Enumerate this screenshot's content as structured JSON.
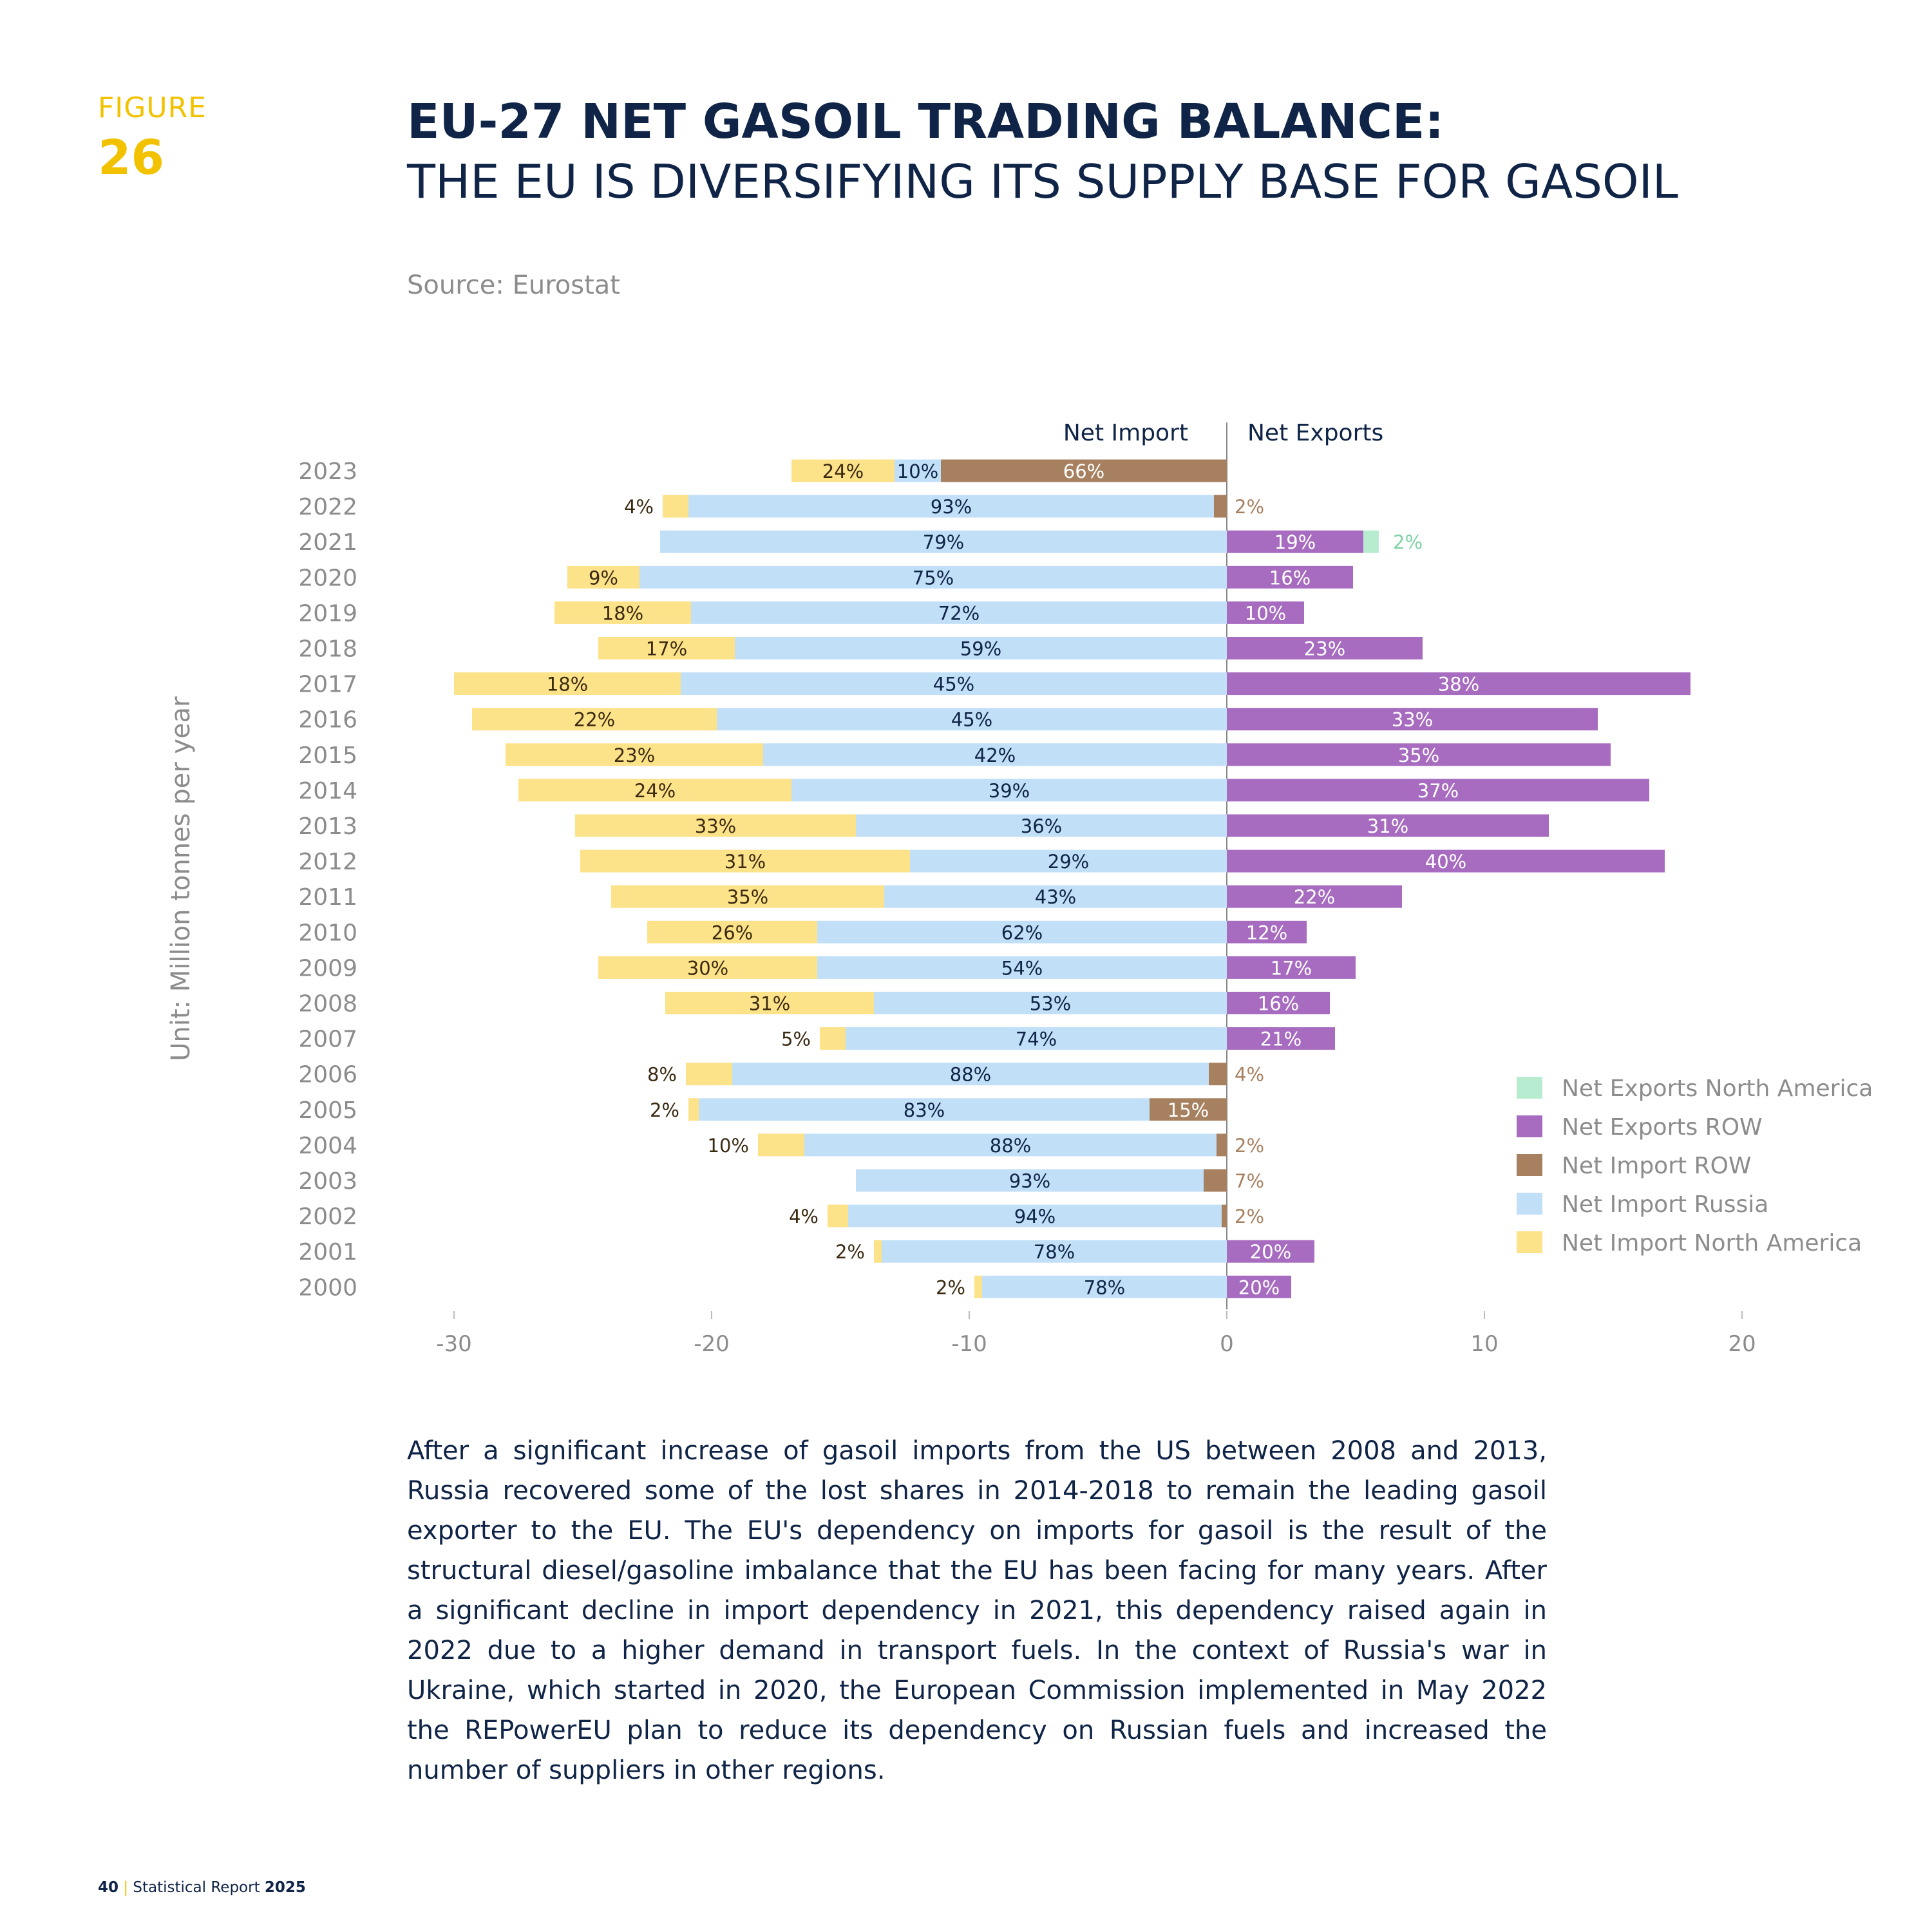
{
  "figure": {
    "label": "FIGURE",
    "number": "26"
  },
  "title": {
    "main": "EU-27 NET GASOIL TRADING BALANCE:",
    "sub": "THE EU IS DIVERSIFYING ITS SUPPLY BASE FOR GASOIL"
  },
  "source": "Source: Eurostat",
  "body_text": "After a significant increase of gasoil imports from the US between 2008 and 2013, Russia recovered some of the lost shares in 2014-2018 to remain the leading gasoil exporter to the EU. The EU's dependency on imports for gasoil is the result of the structural diesel/gasoline imbalance that the EU has been facing for many years. After a significant decline in import dependency in 2021, this dependency raised again in 2022 due to a higher demand in transport fuels. In the context of Russia's war in Ukraine, which started in 2020, the European Commission implemented in May 2022 the REPowerEU plan to reduce its dependency on Russian fuels and increased the number of suppliers in other regions.",
  "footer": {
    "page": "40",
    "report": "Statistical Report",
    "year": "2025"
  },
  "colors": {
    "net_import_north_america": "#fce288",
    "net_import_russia": "#c2dff8",
    "net_import_row": "#a78060",
    "net_exports_row": "#a76cc0",
    "net_exports_north_america": "#b8ecd0",
    "text_dark": "#0f2446",
    "accent": "#f2c200"
  },
  "chart_data": {
    "type": "bar",
    "orientation": "horizontal",
    "stacked": true,
    "title": "",
    "xlabel": "",
    "ylabel": "Unit: Million tonnes per year",
    "header_left": "Net Import",
    "header_right": "Net Exports",
    "xlim": [
      -30,
      20
    ],
    "xticks": [
      "-30",
      "-20",
      "-10",
      "0",
      "10",
      "20"
    ],
    "legend_position": "right",
    "legend": [
      "Net Exports North America",
      "Net Exports ROW",
      "Net Import ROW",
      "Net Import Russia",
      "Net Import North America"
    ],
    "categories": [
      "2023",
      "2022",
      "2021",
      "2020",
      "2019",
      "2018",
      "2017",
      "2016",
      "2015",
      "2014",
      "2013",
      "2012",
      "2011",
      "2010",
      "2009",
      "2008",
      "2007",
      "2006",
      "2005",
      "2004",
      "2003",
      "2002",
      "2001",
      "2000"
    ],
    "series": [
      {
        "name": "Net Import North America",
        "key": "net_import_north_america",
        "values": [
          -4.0,
          -1.0,
          0,
          -2.8,
          -5.3,
          -5.3,
          -8.8,
          -9.5,
          -10.0,
          -10.6,
          -10.9,
          -12.8,
          -10.6,
          -6.6,
          -8.5,
          -8.1,
          -1.0,
          -1.8,
          -0.4,
          -1.8,
          0,
          -0.8,
          -0.3,
          -0.3
        ],
        "labels": [
          "24%",
          "4%",
          "",
          "9%",
          "18%",
          "17%",
          "18%",
          "22%",
          "23%",
          "24%",
          "33%",
          "31%",
          "35%",
          "26%",
          "30%",
          "31%",
          "5%",
          "8%",
          "2%",
          "10%",
          "",
          "4%",
          "2%",
          "2%"
        ]
      },
      {
        "name": "Net Import Russia",
        "key": "net_import_russia",
        "values": [
          -1.8,
          -20.4,
          -22.0,
          -22.8,
          -20.8,
          -19.1,
          -21.2,
          -19.8,
          -18.0,
          -16.9,
          -14.4,
          -12.3,
          -13.3,
          -15.9,
          -15.9,
          -13.7,
          -14.8,
          -18.5,
          -17.5,
          -16.0,
          -13.5,
          -14.5,
          -13.4,
          -9.5
        ],
        "labels": [
          "10%",
          "93%",
          "79%",
          "75%",
          "72%",
          "59%",
          "45%",
          "45%",
          "42%",
          "39%",
          "36%",
          "29%",
          "43%",
          "62%",
          "54%",
          "53%",
          "74%",
          "88%",
          "83%",
          "88%",
          "93%",
          "94%",
          "78%",
          "78%"
        ]
      },
      {
        "name": "Net Import ROW",
        "key": "net_import_row",
        "values": [
          -11.1,
          -0.5,
          0,
          0,
          0,
          0,
          0,
          0,
          0,
          0,
          0,
          0,
          0,
          0,
          0,
          0,
          0,
          -0.7,
          -3.0,
          -0.4,
          -0.9,
          -0.2,
          0,
          0
        ],
        "labels": [
          "66%",
          "2%",
          "",
          "",
          "",
          "",
          "",
          "",
          "",
          "",
          "",
          "",
          "",
          "",
          "",
          "",
          "",
          "4%",
          "15%",
          "2%",
          "7%",
          "2%",
          "",
          ""
        ]
      },
      {
        "name": "Net Exports ROW",
        "key": "net_exports_row",
        "values": [
          0,
          0,
          5.3,
          4.9,
          3.0,
          7.6,
          18.0,
          14.4,
          14.9,
          16.4,
          12.5,
          17.0,
          6.8,
          3.1,
          5.0,
          4.0,
          4.2,
          0,
          0,
          0,
          0,
          0,
          3.4,
          2.5
        ],
        "labels": [
          "",
          "",
          "19%",
          "16%",
          "10%",
          "23%",
          "38%",
          "33%",
          "35%",
          "37%",
          "31%",
          "40%",
          "22%",
          "12%",
          "17%",
          "16%",
          "21%",
          "",
          "",
          "",
          "",
          "",
          "20%",
          "20%"
        ]
      },
      {
        "name": "Net Exports North America",
        "key": "net_exports_north_america",
        "values": [
          0,
          0,
          0.6,
          0,
          0,
          0,
          0,
          0,
          0,
          0,
          0,
          0,
          0,
          0,
          0,
          0,
          0,
          0,
          0,
          0,
          0,
          0,
          0,
          0
        ],
        "labels": [
          "",
          "",
          "2%",
          "",
          "",
          "",
          "",
          "",
          "",
          "",
          "",
          "",
          "",
          "",
          "",
          "",
          "",
          "",
          "",
          "",
          "",
          "",
          "",
          ""
        ]
      }
    ]
  }
}
